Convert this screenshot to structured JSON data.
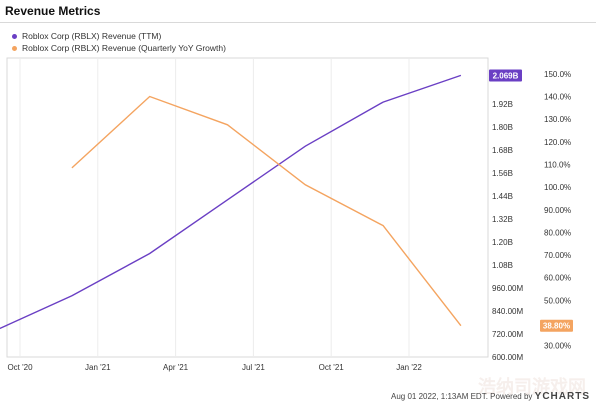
{
  "title": "Revenue Metrics",
  "footer": {
    "timestamp": "Aug 01 2022, 1:13AM EDT.",
    "powered_by": "Powered by",
    "brand": "YCHARTS"
  },
  "watermark": "浩纳司游戏网",
  "chart_data": {
    "type": "line",
    "x_ticks": [
      "Oct '20",
      "Jan '21",
      "Apr '21",
      "Jul '21",
      "Oct '21",
      "Jan '22"
    ],
    "series": [
      {
        "name": "Roblox Corp (RBLX) Revenue (TTM)",
        "color": "#6a3fc4",
        "axis": "left",
        "x": [
          "Sep '20",
          "Dec '20",
          "Mar '21",
          "Jun '21",
          "Sep '21",
          "Dec '21",
          "Mar '22"
        ],
        "values": [
          0.735,
          0.92,
          1.14,
          1.42,
          1.7,
          1.93,
          2.069
        ],
        "last_label": "2.069B"
      },
      {
        "name": "Roblox Corp (RBLX) Revenue (Quarterly YoY Growth)",
        "color": "#f4a460",
        "axis": "right",
        "x": [
          "Dec '20",
          "Mar '21",
          "Jun '21",
          "Sep '21",
          "Dec '21",
          "Mar '22"
        ],
        "values": [
          108.5,
          140.0,
          127.5,
          101.0,
          83.0,
          38.8
        ],
        "last_label": "38.80%"
      }
    ],
    "left_axis": {
      "ticks": [
        "600.00M",
        "720.00M",
        "840.00M",
        "960.00M",
        "1.08B",
        "1.20B",
        "1.32B",
        "1.44B",
        "1.56B",
        "1.68B",
        "1.80B",
        "1.92B"
      ],
      "values": [
        0.6,
        0.72,
        0.84,
        0.96,
        1.08,
        1.2,
        1.32,
        1.44,
        1.56,
        1.68,
        1.8,
        1.92
      ],
      "range": [
        0.6,
        2.16
      ]
    },
    "right_axis": {
      "ticks": [
        "30.00%",
        "40.00%",
        "50.00%",
        "60.00%",
        "70.00%",
        "80.00%",
        "90.00%",
        "100.0%",
        "110.0%",
        "120.0%",
        "130.0%",
        "140.0%",
        "150.0%"
      ],
      "values": [
        30,
        40,
        50,
        60,
        70,
        80,
        90,
        100,
        110,
        120,
        130,
        140,
        150
      ],
      "range": [
        25,
        157
      ]
    },
    "grid": true,
    "legend_position": "top-left"
  }
}
